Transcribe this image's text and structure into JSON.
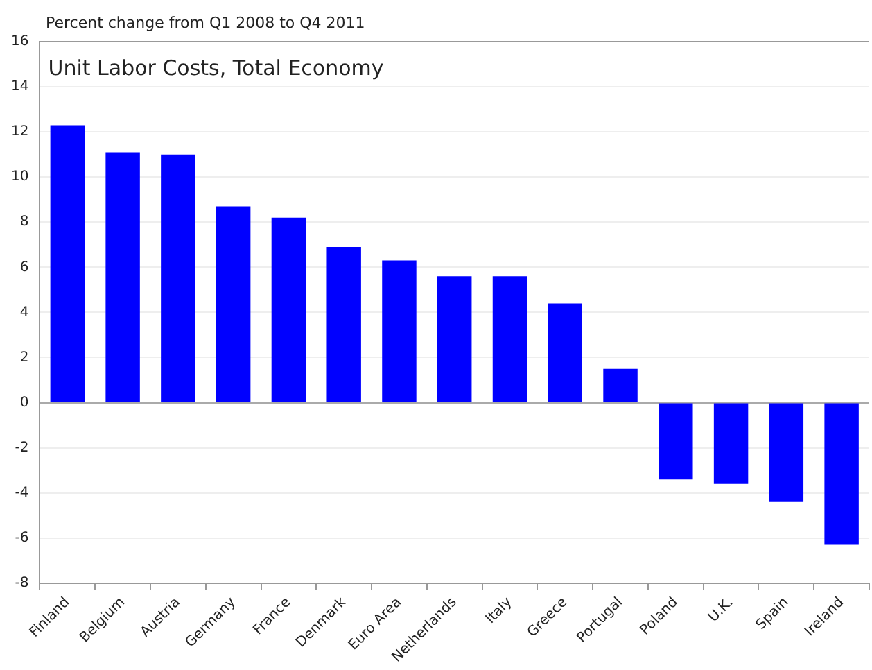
{
  "chart_data": {
    "type": "bar",
    "subtitle": "Percent change from Q1 2008 to Q4 2011",
    "title": "Unit Labor Costs, Total Economy",
    "categories": [
      "Finland",
      "Belgium",
      "Austria",
      "Germany",
      "France",
      "Denmark",
      "Euro Area",
      "Netherlands",
      "Italy",
      "Greece",
      "Portugal",
      "Poland",
      "U.K.",
      "Spain",
      "Ireland"
    ],
    "values": [
      12.3,
      11.1,
      11.0,
      8.7,
      8.2,
      6.9,
      6.3,
      5.6,
      5.6,
      4.4,
      1.5,
      -3.4,
      -3.6,
      -4.4,
      -6.3
    ],
    "color": "#0000ff",
    "ylim": [
      -8,
      16
    ],
    "yticks": [
      -8,
      -6,
      -4,
      -2,
      0,
      2,
      4,
      6,
      8,
      10,
      12,
      14,
      16
    ],
    "grid": "y"
  }
}
